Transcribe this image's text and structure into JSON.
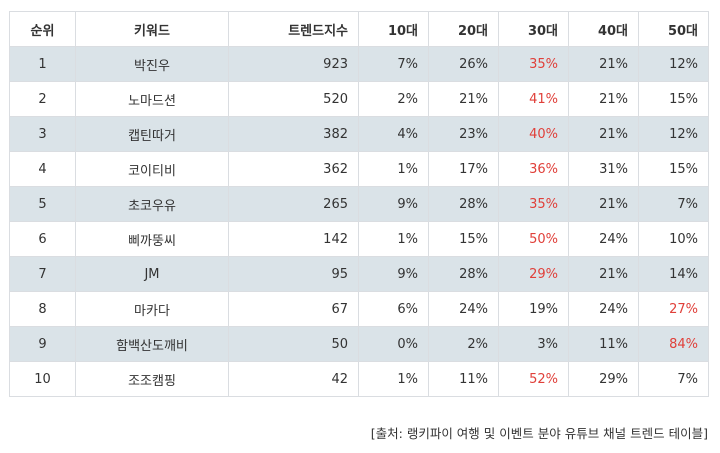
{
  "headers": [
    "순위",
    "키워드",
    "트렌드지수",
    "10대",
    "20대",
    "30대",
    "40대",
    "50대"
  ],
  "accent_color": "#e0403a",
  "row_shade_color": "#dae3e8",
  "rows": [
    {
      "rank": "1",
      "keyword": "박진우",
      "index": "923",
      "ages": [
        "7%",
        "26%",
        "35%",
        "21%",
        "12%"
      ],
      "highlight": 2
    },
    {
      "rank": "2",
      "keyword": "노마드션",
      "index": "520",
      "ages": [
        "2%",
        "21%",
        "41%",
        "21%",
        "15%"
      ],
      "highlight": 2
    },
    {
      "rank": "3",
      "keyword": "캡틴따거",
      "index": "382",
      "ages": [
        "4%",
        "23%",
        "40%",
        "21%",
        "12%"
      ],
      "highlight": 2
    },
    {
      "rank": "4",
      "keyword": "코이티비",
      "index": "362",
      "ages": [
        "1%",
        "17%",
        "36%",
        "31%",
        "15%"
      ],
      "highlight": 2
    },
    {
      "rank": "5",
      "keyword": "초코우유",
      "index": "265",
      "ages": [
        "9%",
        "28%",
        "35%",
        "21%",
        "7%"
      ],
      "highlight": 2
    },
    {
      "rank": "6",
      "keyword": "삐까뚱씨",
      "index": "142",
      "ages": [
        "1%",
        "15%",
        "50%",
        "24%",
        "10%"
      ],
      "highlight": 2
    },
    {
      "rank": "7",
      "keyword": "JM",
      "index": "95",
      "ages": [
        "9%",
        "28%",
        "29%",
        "21%",
        "14%"
      ],
      "highlight": 2
    },
    {
      "rank": "8",
      "keyword": "마카다",
      "index": "67",
      "ages": [
        "6%",
        "24%",
        "19%",
        "24%",
        "27%"
      ],
      "highlight": 4
    },
    {
      "rank": "9",
      "keyword": "함백산도깨비",
      "index": "50",
      "ages": [
        "0%",
        "2%",
        "3%",
        "11%",
        "84%"
      ],
      "highlight": 4
    },
    {
      "rank": "10",
      "keyword": "조조캠핑",
      "index": "42",
      "ages": [
        "1%",
        "11%",
        "52%",
        "29%",
        "7%"
      ],
      "highlight": 2
    }
  ],
  "caption": "[출처: 랭키파이 여행 및 이벤트 분야 유튜브 채널 트렌드 테이블]"
}
